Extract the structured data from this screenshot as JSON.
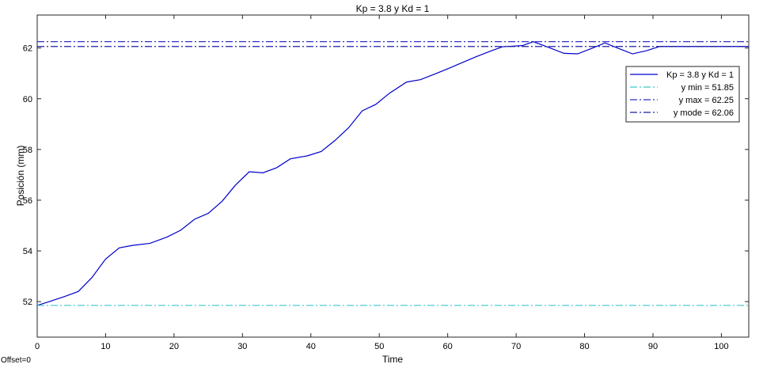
{
  "chart_data": {
    "type": "line",
    "title": "Kp = 3.8 y Kd = 1",
    "xlabel": "Time",
    "ylabel": "Posición (mm)",
    "xlim": [
      0,
      104
    ],
    "ylim": [
      50.6,
      63.3
    ],
    "xticks": [
      0,
      10,
      20,
      30,
      40,
      50,
      60,
      70,
      80,
      90,
      100
    ],
    "yticks": [
      52,
      54,
      56,
      58,
      60,
      62
    ],
    "grid": false,
    "legend_position": "top-right",
    "series": [
      {
        "name": "Kp = 3.8 y Kd = 1",
        "style": "solid",
        "color": "#0000cc",
        "x": [
          0,
          2,
          4,
          6,
          8,
          10,
          12,
          14,
          16.5,
          19,
          21,
          23,
          25,
          27,
          29,
          31,
          33,
          35,
          37,
          39.5,
          41.5,
          43.5,
          45.5,
          47.5,
          49.5,
          51.5,
          54,
          56,
          58,
          60,
          62,
          64,
          66,
          68,
          70,
          71,
          72.5,
          74.5,
          77,
          79,
          81,
          83,
          85,
          87,
          89,
          91,
          94,
          97,
          100,
          104
        ],
        "y": [
          51.85,
          52.02,
          52.2,
          52.4,
          52.95,
          53.68,
          54.12,
          54.22,
          54.3,
          54.55,
          54.82,
          55.25,
          55.48,
          55.95,
          56.6,
          57.12,
          57.08,
          57.28,
          57.63,
          57.75,
          57.92,
          58.35,
          58.85,
          59.52,
          59.78,
          60.22,
          60.66,
          60.75,
          60.96,
          61.18,
          61.41,
          61.64,
          61.85,
          62.05,
          62.08,
          62.1,
          62.25,
          62.05,
          61.79,
          61.77,
          61.98,
          62.2,
          61.98,
          61.77,
          61.89,
          62.06,
          62.06,
          62.06,
          62.06,
          62.06
        ]
      },
      {
        "name": "y min = 51.85",
        "style": "dashdot",
        "color": "#3cc8c8",
        "x": [
          0,
          104
        ],
        "y": [
          51.85,
          51.85
        ]
      },
      {
        "name": "y max = 62.25",
        "style": "dashdot",
        "color": "#3232c8",
        "x": [
          0,
          104
        ],
        "y": [
          62.25,
          62.25
        ]
      },
      {
        "name": "y mode = 62.06",
        "style": "dashdot",
        "color": "#1e1ea0",
        "x": [
          0,
          104
        ],
        "y": [
          62.06,
          62.06
        ]
      }
    ]
  },
  "footer": {
    "note": "Offset=0"
  }
}
